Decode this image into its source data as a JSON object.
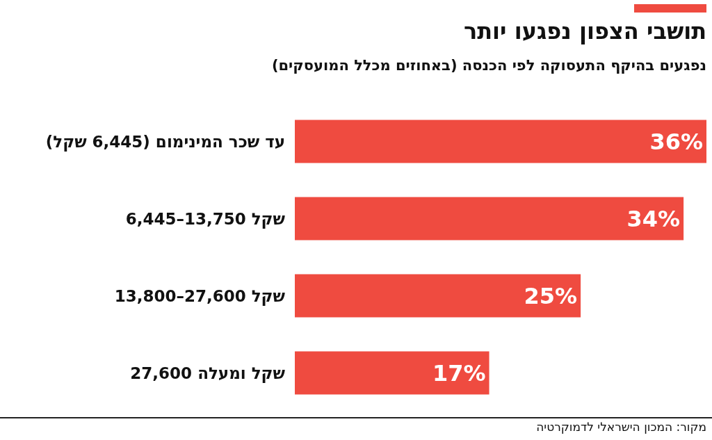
{
  "chart_data": {
    "type": "bar",
    "orientation": "horizontal",
    "title": "תושבי הצפון נפגעו יותר",
    "subtitle": "נפגעים בהיקף התעסוקה לפי הכנסה (באחוזים מכלל המועסקים)",
    "categories": [
      "עד שכר המינימום (6,445 שקל)",
      "6,445–13,750 שקל",
      "13,800–27,600 שקל",
      "27,600 שקל ומעלה"
    ],
    "values": [
      36,
      34,
      25,
      17
    ],
    "value_labels": [
      "36%",
      "34%",
      "25%",
      "17%"
    ],
    "color": "#ef4b40",
    "grid": false,
    "tick_labels": "y",
    "annotations": [
      "מקור: המכון הישראלי לדמוקרטיה"
    ]
  }
}
